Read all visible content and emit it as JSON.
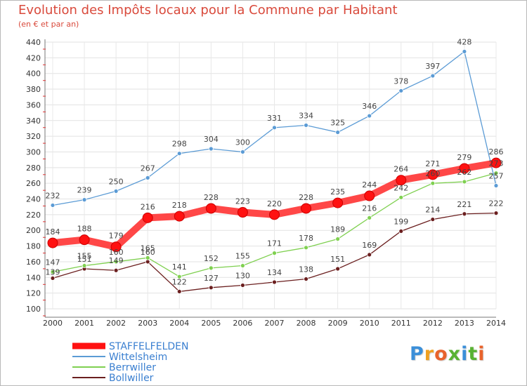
{
  "title": "Evolution des Impôts locaux pour la Commune par Habitant",
  "subtitle": "(en € et par an)",
  "brand": {
    "letters": [
      "P",
      "r",
      "o",
      "x",
      "i",
      "t",
      "i"
    ],
    "colors": [
      "#3b8fd9",
      "#f0a020",
      "#e8632c",
      "#59b233",
      "#3b8fd9",
      "#59b233",
      "#e8632c"
    ]
  },
  "chart_data": {
    "type": "line",
    "x": [
      2000,
      2001,
      2002,
      2003,
      2004,
      2005,
      2006,
      2007,
      2008,
      2009,
      2010,
      2011,
      2012,
      2013,
      2014
    ],
    "ylim": [
      100,
      440
    ],
    "yticks": [
      100,
      120,
      140,
      160,
      180,
      200,
      220,
      240,
      260,
      280,
      300,
      320,
      340,
      360,
      380,
      400,
      420,
      440
    ],
    "grid": true,
    "legend_position": "bottom-left",
    "series": [
      {
        "name": "STAFFELFELDEN",
        "color": "#ee0000",
        "values": [
          184,
          188,
          179,
          216,
          218,
          228,
          223,
          220,
          228,
          235,
          244,
          264,
          271,
          279,
          286
        ],
        "labels": [
          "184",
          "188",
          "179",
          "216",
          "218",
          "228",
          "223",
          "220",
          "228",
          "235",
          "244",
          "264",
          "271",
          "279",
          "286"
        ]
      },
      {
        "name": "Wittelsheim",
        "color": "#5b9bd5",
        "values": [
          232,
          239,
          250,
          267,
          298,
          304,
          300,
          331,
          334,
          325,
          346,
          378,
          397,
          428,
          257
        ],
        "labels": [
          "232",
          "239",
          "250",
          "267",
          "298",
          "304",
          "300",
          "331",
          "334",
          "325",
          "346",
          "378",
          "397",
          "428",
          "257"
        ]
      },
      {
        "name": "Berrwiller",
        "color": "#7fd050",
        "values": [
          147,
          155,
          160,
          165,
          141,
          152,
          155,
          171,
          178,
          189,
          216,
          242,
          260,
          262,
          273
        ],
        "labels": [
          "147",
          "155",
          "160",
          "165",
          "141",
          "152",
          "155",
          "171",
          "178",
          "189",
          "216",
          "242",
          "260",
          "262",
          "273"
        ]
      },
      {
        "name": "Bollwiller",
        "color": "#6b1f1f",
        "values": [
          139,
          151,
          149,
          160,
          122,
          127,
          130,
          134,
          138,
          151,
          169,
          199,
          214,
          221,
          222
        ],
        "labels": [
          "139",
          "151",
          "149",
          "160",
          "122",
          "127",
          "130",
          "134",
          "138",
          "151",
          "169",
          "199",
          "214",
          "221",
          "222"
        ]
      }
    ]
  }
}
